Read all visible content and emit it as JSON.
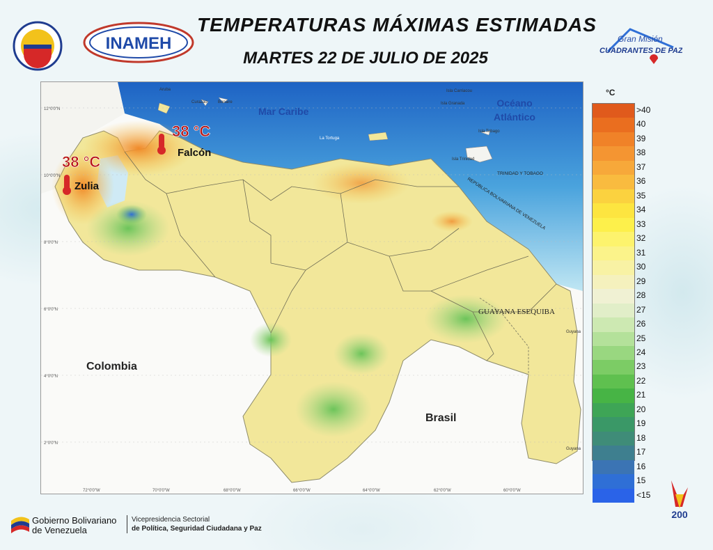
{
  "header": {
    "title": "TEMPERATURAS MÁXIMAS ESTIMADAS",
    "subtitle": "MARTES 22 DE JULIO DE 2025",
    "inameh_logo_text": "INAMEH",
    "gm_logo_line1": "Gran Misión",
    "gm_logo_line2": "CUADRANTES DE PAZ"
  },
  "map": {
    "labels": {
      "mar_caribe": "Mar Caribe",
      "oceano": "Océano",
      "atlantico": "Atlántico",
      "colombia": "Colombia",
      "brasil": "Brasil",
      "guayana_esequiba": "GUAYANA ESEQUIBA",
      "trinidad_tobago": "TRINIDAD Y TOBAGO",
      "republica": "REPÚBLICA BOLIVARIANA DE VENEZUELA",
      "aruba": "Aruba",
      "curazao": "Curazao",
      "bonaire": "Bonaire",
      "isla_carriacou": "Isla Carriacou",
      "isla_granada": "Isla Granada",
      "isla_tobago": "Isla Tobago",
      "isla_trinidad": "Isla Trinidad",
      "la_tortuga": "La Tortuga",
      "guyana_1": "Guyana",
      "guyana_2": "Guyana"
    },
    "hotspots": [
      {
        "temp": "38 °C",
        "place": "Falcón"
      },
      {
        "temp": "38 °C",
        "place": "Zulia"
      }
    ],
    "lat_ticks": [
      "12°0'0\"N",
      "10°0'0\"N",
      "8°0'0\"N",
      "6°0'0\"N",
      "4°0'0\"N",
      "2°0'0\"N"
    ],
    "lon_ticks": [
      "72°0'0\"W",
      "70°0'0\"W",
      "68°0'0\"W",
      "66°0'0\"W",
      "64°0'0\"W",
      "62°0'0\"W",
      "60°0'0\"W"
    ]
  },
  "legend": {
    "unit": "°C",
    "items": [
      {
        "label": ">40",
        "color": "#e05a1c"
      },
      {
        "label": "40",
        "color": "#ea6e1f"
      },
      {
        "label": "39",
        "color": "#f08228"
      },
      {
        "label": "38",
        "color": "#f49532"
      },
      {
        "label": "37",
        "color": "#f7a83a"
      },
      {
        "label": "36",
        "color": "#f9bb3f"
      },
      {
        "label": "35",
        "color": "#fbd23f"
      },
      {
        "label": "34",
        "color": "#fde540"
      },
      {
        "label": "33",
        "color": "#fdf04b"
      },
      {
        "label": "32",
        "color": "#fdf36d"
      },
      {
        "label": "31",
        "color": "#fbf38a"
      },
      {
        "label": "30",
        "color": "#f8f2a4"
      },
      {
        "label": "29",
        "color": "#f5f1bd"
      },
      {
        "label": "28",
        "color": "#f0f1d3"
      },
      {
        "label": "27",
        "color": "#e1eec8"
      },
      {
        "label": "26",
        "color": "#cde9b2"
      },
      {
        "label": "25",
        "color": "#b4e19a"
      },
      {
        "label": "24",
        "color": "#99d780"
      },
      {
        "label": "23",
        "color": "#7ccc65"
      },
      {
        "label": "22",
        "color": "#5fc04f"
      },
      {
        "label": "21",
        "color": "#47b445"
      },
      {
        "label": "20",
        "color": "#3ea556"
      },
      {
        "label": "19",
        "color": "#3a9867"
      },
      {
        "label": "18",
        "color": "#3f8c78"
      },
      {
        "label": "17",
        "color": "#3e7f8f"
      },
      {
        "label": "16",
        "color": "#3b74b4"
      },
      {
        "label": "15",
        "color": "#2f6fd6"
      },
      {
        "label": "<15",
        "color": "#2a63e8"
      }
    ]
  },
  "footer": {
    "gob_line1": "Gobierno Bolivariano",
    "gob_line2": "de Venezuela",
    "vp_line1": "Vicepresidencia Sectorial",
    "vp_line2": "de Política, Seguridad Ciudadana y Paz",
    "anniv": "200"
  }
}
